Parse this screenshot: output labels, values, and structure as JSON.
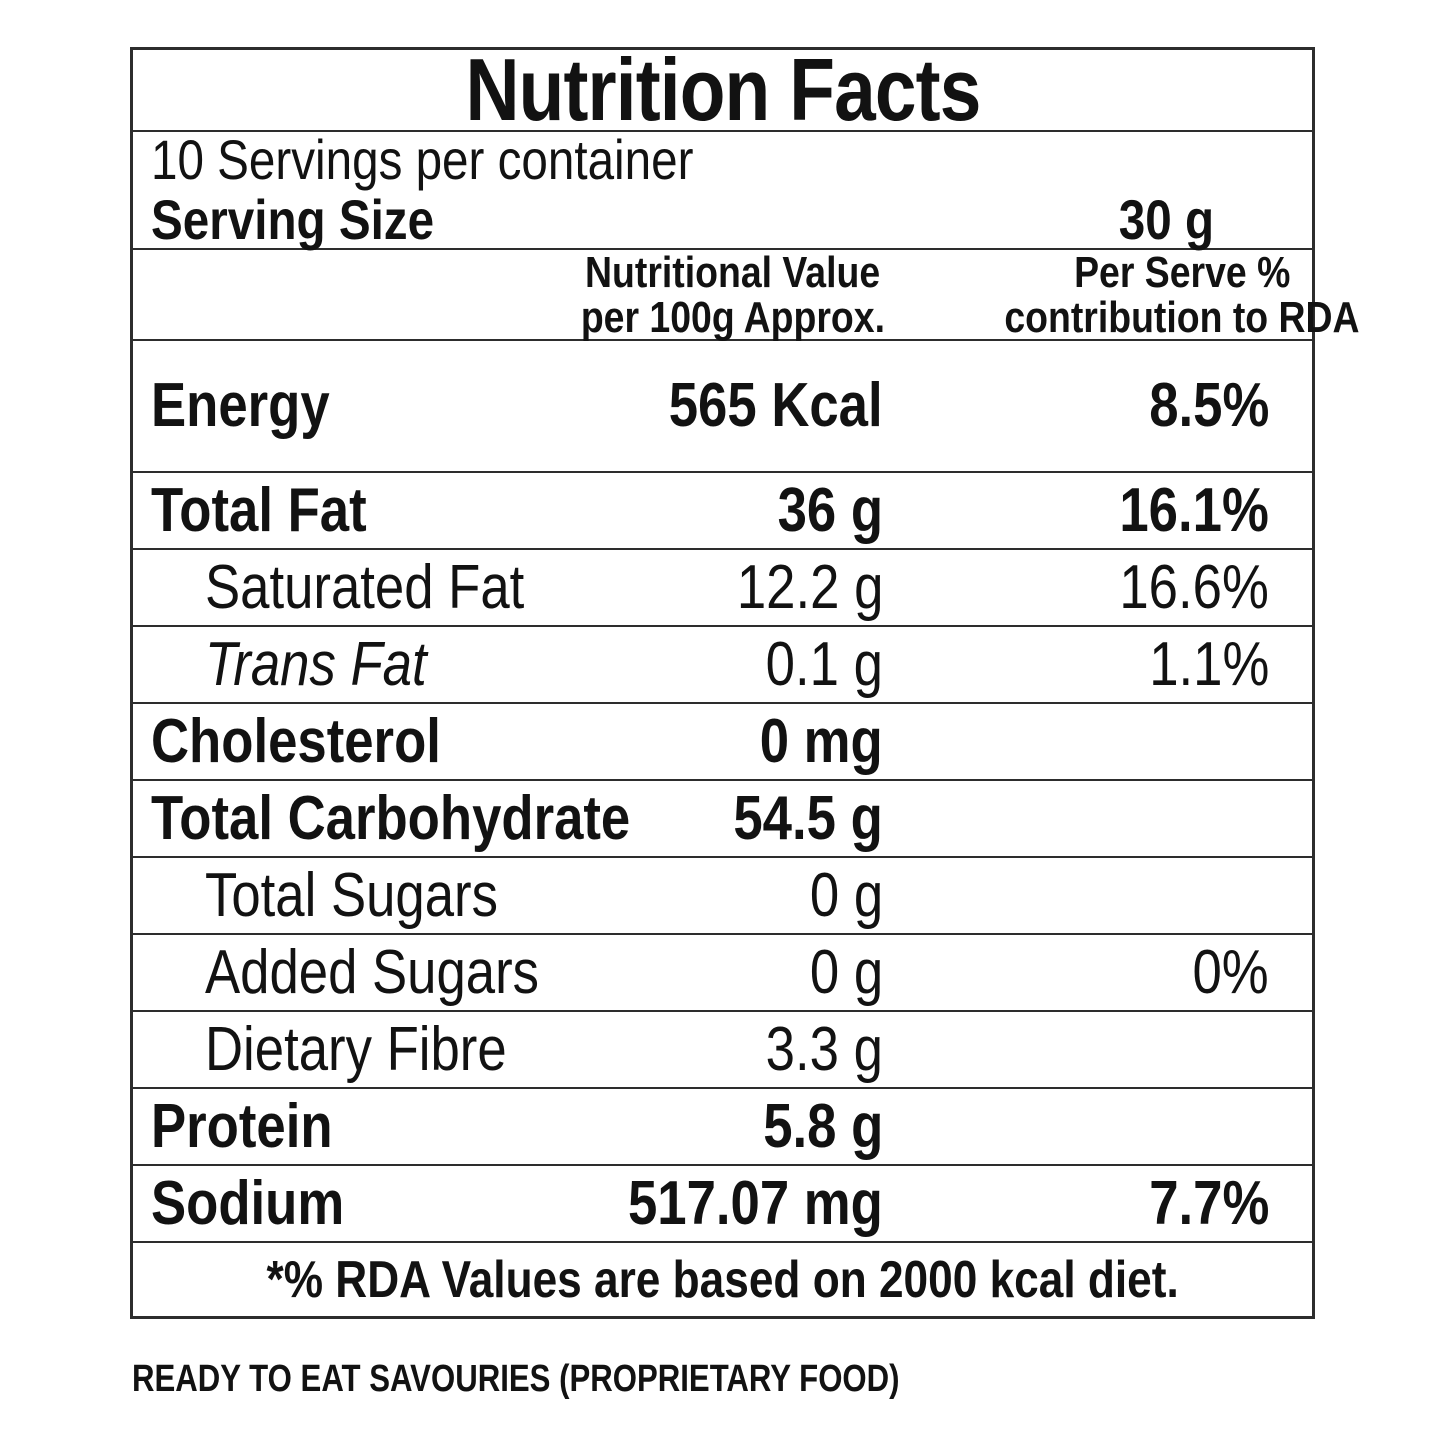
{
  "nutrition_label": {
    "title": "Nutrition Facts",
    "servings_per_container": "10 Servings per container",
    "serving_size": {
      "label": "Serving Size",
      "value": "30 g"
    },
    "columns": {
      "value_line1": "Nutritional Value",
      "value_line2": "per 100g Approx.",
      "rda_line1": "Per Serve %",
      "rda_line2": "contribution to RDA"
    },
    "rows": [
      {
        "name": "Energy",
        "value": "565 Kcal",
        "rda": "8.5%"
      },
      {
        "name": "Total Fat",
        "value": "36 g",
        "rda": "16.1%"
      },
      {
        "name": "Saturated Fat",
        "value": "12.2 g",
        "rda": "16.6%"
      },
      {
        "name": "Trans Fat",
        "value": "0.1 g",
        "rda": "1.1%"
      },
      {
        "name": "Cholesterol",
        "value": "0 mg",
        "rda": ""
      },
      {
        "name": "Total Carbohydrate",
        "value": "54.5 g",
        "rda": ""
      },
      {
        "name": "Total Sugars",
        "value": "0 g",
        "rda": ""
      },
      {
        "name": "Added Sugars",
        "value": "0 g",
        "rda": "0%"
      },
      {
        "name": "Dietary Fibre",
        "value": "3.3 g",
        "rda": ""
      },
      {
        "name": "Protein",
        "value": "5.8 g",
        "rda": ""
      },
      {
        "name": "Sodium",
        "value": "517.07 mg",
        "rda": "7.7%"
      }
    ],
    "footnote": "*% RDA Values are based on 2000 kcal diet."
  },
  "product_type": "READY TO EAT SAVOURIES (PROPRIETARY FOOD)",
  "colors": {
    "text": "#121212",
    "border": "#2d2d2d",
    "background": "#ffffff"
  }
}
